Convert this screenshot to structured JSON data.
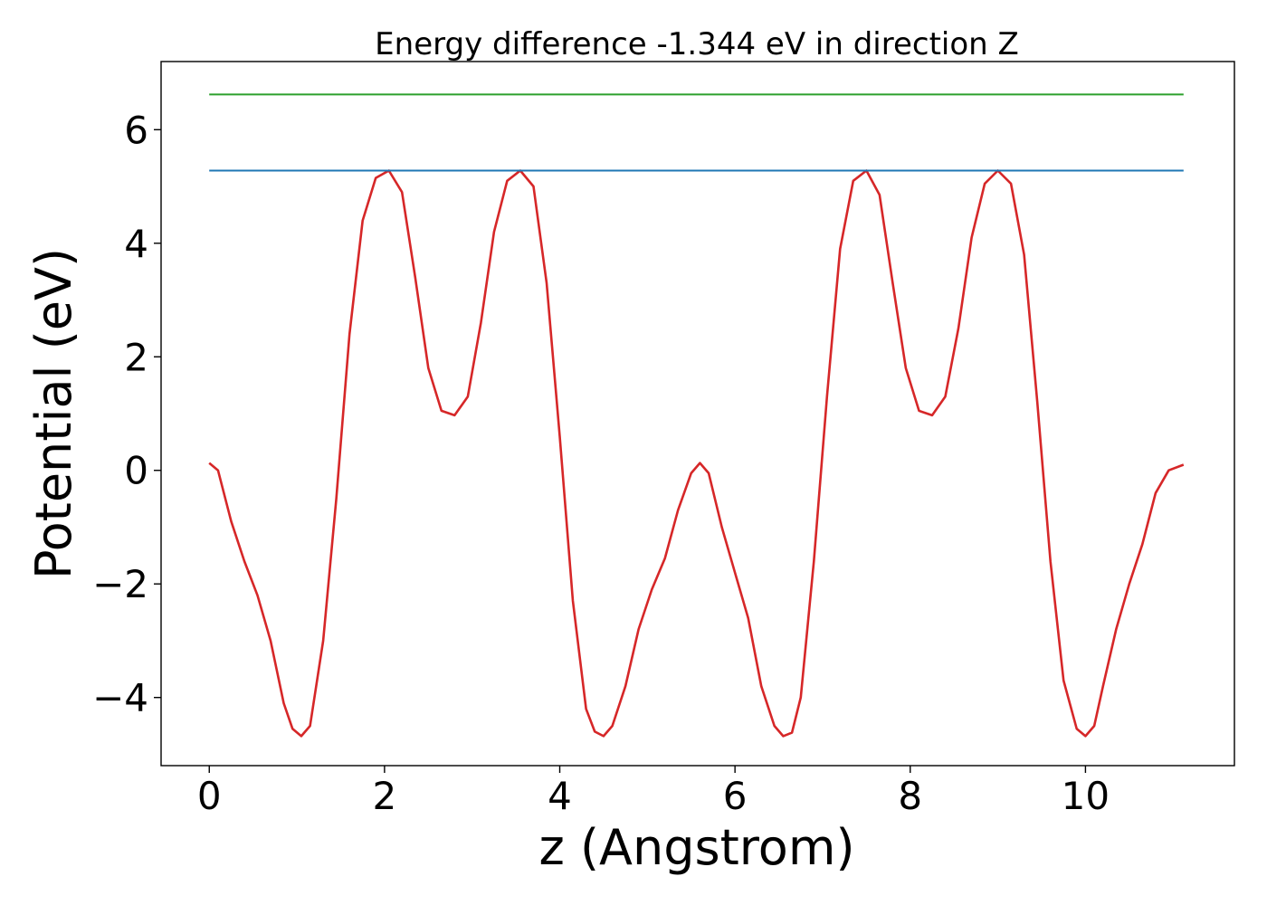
{
  "chart_data": {
    "type": "line",
    "title": "Energy difference -1.344 eV in direction Z",
    "xlabel": "z (Angstrom)",
    "ylabel": "Potential (eV)",
    "xlim": [
      -0.55,
      11.7
    ],
    "ylim": [
      -5.2,
      7.2
    ],
    "xticks": [
      0,
      2,
      4,
      6,
      8,
      10
    ],
    "xtick_labels": [
      "0",
      "2",
      "4",
      "6",
      "8",
      "10"
    ],
    "yticks": [
      -4,
      -2,
      0,
      2,
      4,
      6
    ],
    "ytick_labels": [
      "−4",
      "−2",
      "0",
      "2",
      "4",
      "6"
    ],
    "grid": false,
    "series": [
      {
        "color": "#d62728",
        "x": [
          0.0,
          0.1,
          0.25,
          0.4,
          0.55,
          0.7,
          0.85,
          0.95,
          1.05,
          1.15,
          1.3,
          1.45,
          1.6,
          1.75,
          1.9,
          2.05,
          2.2,
          2.35,
          2.5,
          2.65,
          2.8,
          2.95,
          3.1,
          3.25,
          3.4,
          3.55,
          3.7,
          3.85,
          4.0,
          4.15,
          4.3,
          4.4,
          4.5,
          4.6,
          4.75,
          4.9,
          5.05,
          5.2,
          5.35,
          5.5,
          5.6,
          5.7,
          5.85,
          6.0,
          6.15,
          6.3,
          6.45,
          6.55,
          6.65,
          6.75,
          6.9,
          7.05,
          7.2,
          7.35,
          7.5,
          7.65,
          7.8,
          7.95,
          8.1,
          8.25,
          8.4,
          8.55,
          8.7,
          8.85,
          9.0,
          9.15,
          9.3,
          9.45,
          9.6,
          9.75,
          9.9,
          10.0,
          10.1,
          10.2,
          10.35,
          10.5,
          10.65,
          10.8,
          10.95,
          11.12
        ],
        "values": [
          0.13,
          0.0,
          -0.9,
          -1.6,
          -2.2,
          -3.0,
          -4.1,
          -4.55,
          -4.68,
          -4.5,
          -3.0,
          -0.5,
          2.4,
          4.4,
          5.15,
          5.28,
          4.9,
          3.4,
          1.8,
          1.05,
          0.97,
          1.3,
          2.6,
          4.2,
          5.1,
          5.28,
          5.0,
          3.3,
          0.6,
          -2.3,
          -4.2,
          -4.6,
          -4.68,
          -4.5,
          -3.8,
          -2.8,
          -2.1,
          -1.55,
          -0.7,
          -0.05,
          0.13,
          -0.05,
          -1.0,
          -1.8,
          -2.6,
          -3.8,
          -4.5,
          -4.68,
          -4.62,
          -4.0,
          -1.6,
          1.3,
          3.9,
          5.1,
          5.28,
          4.85,
          3.3,
          1.8,
          1.05,
          0.97,
          1.3,
          2.5,
          4.1,
          5.05,
          5.28,
          5.05,
          3.8,
          1.2,
          -1.6,
          -3.7,
          -4.55,
          -4.68,
          -4.5,
          -3.8,
          -2.8,
          -2.0,
          -1.3,
          -0.4,
          0.0,
          0.1
        ]
      },
      {
        "color": "#1f77b4",
        "x": [
          0.0,
          11.12
        ],
        "values": [
          5.28,
          5.28
        ]
      },
      {
        "color": "#2ca02c",
        "x": [
          0.0,
          11.12
        ],
        "values": [
          6.62,
          6.62
        ]
      }
    ]
  }
}
